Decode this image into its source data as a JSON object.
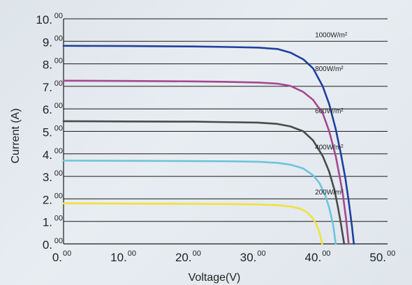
{
  "chart_data": {
    "type": "line",
    "xlabel": "Voltage(V)",
    "ylabel": "Current (A)",
    "xlim": [
      0,
      50
    ],
    "ylim": [
      0,
      10
    ],
    "x_ticks": [
      {
        "main": "0.",
        "sup": "00",
        "value": 0
      },
      {
        "main": "10.",
        "sup": "00",
        "value": 10
      },
      {
        "main": "20.",
        "sup": "00",
        "value": 20
      },
      {
        "main": "30.",
        "sup": "00",
        "value": 30
      },
      {
        "main": "40.",
        "sup": "00",
        "value": 40
      },
      {
        "main": "50.",
        "sup": "00",
        "value": 50
      }
    ],
    "y_ticks": [
      {
        "main": "0.",
        "sup": "00",
        "value": 0
      },
      {
        "main": "1.",
        "sup": "00",
        "value": 1
      },
      {
        "main": "2.",
        "sup": "00",
        "value": 2
      },
      {
        "main": "3.",
        "sup": "00",
        "value": 3
      },
      {
        "main": "4.",
        "sup": "00",
        "value": 4
      },
      {
        "main": "5.",
        "sup": "00",
        "value": 5
      },
      {
        "main": "6.",
        "sup": "00",
        "value": 6
      },
      {
        "main": "7.",
        "sup": "00",
        "value": 7
      },
      {
        "main": "8.",
        "sup": "00",
        "value": 8
      },
      {
        "main": "9.",
        "sup": "00",
        "value": 9
      },
      {
        "main": "10.",
        "sup": "00",
        "value": 10
      }
    ],
    "grid": "horizontal",
    "series": [
      {
        "name": "1000W/m²",
        "color": "#1f3f9f",
        "x": [
          0,
          10,
          20,
          25,
          30,
          33,
          35,
          37,
          38.5,
          40,
          41,
          42,
          42.8,
          43.5,
          44,
          44.5,
          44.8
        ],
        "y": [
          8.8,
          8.79,
          8.77,
          8.75,
          8.72,
          8.66,
          8.5,
          8.2,
          7.8,
          7.0,
          6.2,
          5.1,
          4.0,
          2.9,
          1.9,
          0.8,
          0
        ]
      },
      {
        "name": "800W/m²",
        "color": "#a4488f",
        "x": [
          0,
          10,
          20,
          25,
          30,
          33,
          35,
          37,
          38.5,
          40,
          41,
          42,
          42.6,
          43.1,
          43.6,
          44.0
        ],
        "y": [
          7.25,
          7.24,
          7.22,
          7.2,
          7.17,
          7.12,
          7.02,
          6.75,
          6.4,
          5.8,
          5.0,
          3.9,
          3.0,
          2.2,
          1.1,
          0
        ]
      },
      {
        "name": "600W/m²",
        "color": "#4a4a4a",
        "x": [
          0,
          10,
          20,
          25,
          30,
          33,
          35,
          37,
          38.5,
          40,
          41,
          41.8,
          42.3,
          42.8,
          43.3
        ],
        "y": [
          5.45,
          5.44,
          5.43,
          5.41,
          5.39,
          5.33,
          5.22,
          5.0,
          4.6,
          3.9,
          3.2,
          2.4,
          1.7,
          0.9,
          0
        ]
      },
      {
        "name": "400W/m²",
        "color": "#6cc4dc",
        "x": [
          0,
          10,
          20,
          25,
          30,
          33,
          35,
          37,
          38.5,
          39.5,
          40.4,
          41.0,
          41.6,
          42.0
        ],
        "y": [
          3.7,
          3.69,
          3.68,
          3.67,
          3.65,
          3.6,
          3.52,
          3.35,
          3.05,
          2.7,
          2.15,
          1.6,
          0.85,
          0
        ]
      },
      {
        "name": "200W/m²",
        "color": "#f0e23a",
        "x": [
          0,
          10,
          20,
          25,
          30,
          33,
          35,
          36.5,
          37.5,
          38.3,
          39.0,
          39.5,
          39.9
        ],
        "y": [
          1.8,
          1.79,
          1.78,
          1.77,
          1.75,
          1.72,
          1.66,
          1.57,
          1.42,
          1.2,
          0.88,
          0.5,
          0
        ]
      }
    ],
    "annotations": [
      {
        "text": "1000W/m²",
        "x": 38.8,
        "y": 9.18
      },
      {
        "text": "800W/m²",
        "x": 38.8,
        "y": 7.68
      },
      {
        "text": "600W/m²",
        "x": 38.8,
        "y": 5.8
      },
      {
        "text": "400W/m²",
        "x": 38.8,
        "y": 4.2
      },
      {
        "text": "200W/m²",
        "x": 38.8,
        "y": 2.2
      }
    ]
  }
}
